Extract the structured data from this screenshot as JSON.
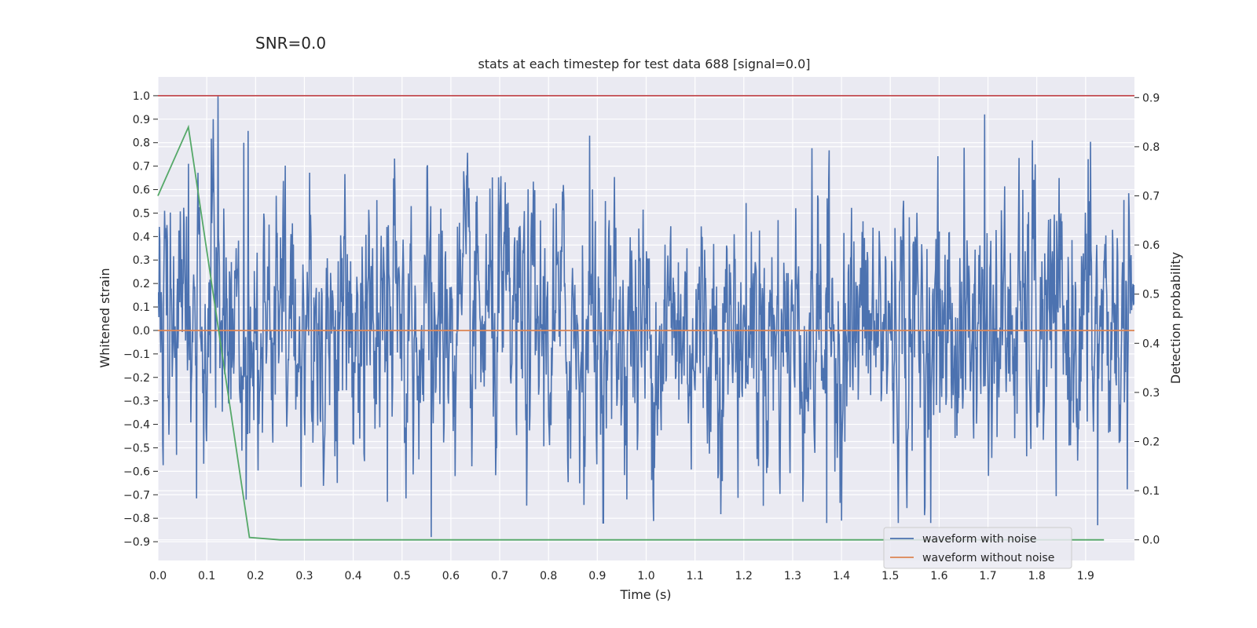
{
  "chart_data": {
    "type": "line",
    "suptitle": "SNR=0.0",
    "title": "stats at each timestep for test data 688 [signal=0.0]",
    "xlabel": "Time (s)",
    "ylabel": "Whitened strain",
    "y2label": "Detection probability",
    "xlim": [
      0.0,
      2.0
    ],
    "ylim": [
      -0.98,
      1.08
    ],
    "y2lim": [
      -0.042,
      0.942
    ],
    "x_ticks": [
      "0.0",
      "0.1",
      "0.2",
      "0.3",
      "0.4",
      "0.5",
      "0.6",
      "0.7",
      "0.8",
      "0.9",
      "1.0",
      "1.1",
      "1.2",
      "1.3",
      "1.4",
      "1.5",
      "1.6",
      "1.7",
      "1.8",
      "1.9"
    ],
    "y_ticks": [
      "1.0",
      "0.9",
      "0.8",
      "0.7",
      "0.6",
      "0.5",
      "0.4",
      "0.3",
      "0.2",
      "0.1",
      "0.0",
      "−0.1",
      "−0.2",
      "−0.3",
      "−0.4",
      "−0.5",
      "−0.6",
      "−0.7",
      "−0.8",
      "−0.9"
    ],
    "y2_ticks": [
      "0.9",
      "0.8",
      "0.7",
      "0.6",
      "0.5",
      "0.4",
      "0.3",
      "0.2",
      "0.1",
      "0.0"
    ],
    "grid": true,
    "legend_position": "lower-right",
    "series": [
      {
        "name": "waveform with noise",
        "color": "#4c72b0",
        "axis": "left",
        "kind": "noise",
        "x_range": [
          0.0,
          2.0
        ],
        "n_points": 2048,
        "amplitude_range": [
          -0.88,
          1.0
        ],
        "peaks": [
          {
            "x": 0.123,
            "y": 1.0
          },
          {
            "x": 0.185,
            "y": 0.85
          },
          {
            "x": 0.176,
            "y": 0.8
          },
          {
            "x": 0.063,
            "y": 0.71
          },
          {
            "x": 0.884,
            "y": 0.83
          },
          {
            "x": 1.693,
            "y": 0.92
          },
          {
            "x": 1.791,
            "y": 0.81
          },
          {
            "x": 1.905,
            "y": 0.73
          },
          {
            "x": 0.56,
            "y": -0.88
          },
          {
            "x": 1.925,
            "y": -0.83
          },
          {
            "x": 1.37,
            "y": -0.82
          },
          {
            "x": 1.4,
            "y": -0.81
          },
          {
            "x": 0.47,
            "y": -0.73
          },
          {
            "x": 0.96,
            "y": -0.72
          }
        ]
      },
      {
        "name": "waveform without noise",
        "color": "#dd8452",
        "axis": "left",
        "x": [
          0.0,
          2.0
        ],
        "y": [
          0.0,
          0.0
        ]
      },
      {
        "name": "",
        "color": "#55a868",
        "axis": "right",
        "x": [
          0.0,
          0.0625,
          0.1875,
          0.25,
          0.3125,
          0.5,
          0.75,
          1.0,
          1.25,
          1.5,
          1.75,
          1.9375
        ],
        "y": [
          0.7,
          0.84,
          0.005,
          0.0,
          0.0,
          0.0,
          0.0,
          0.0,
          0.0,
          0.0,
          0.0,
          0.0
        ]
      },
      {
        "name": "",
        "color": "#c44e52",
        "axis": "left",
        "x": [
          0.0,
          2.0
        ],
        "y": [
          1.0,
          1.0
        ]
      }
    ]
  }
}
